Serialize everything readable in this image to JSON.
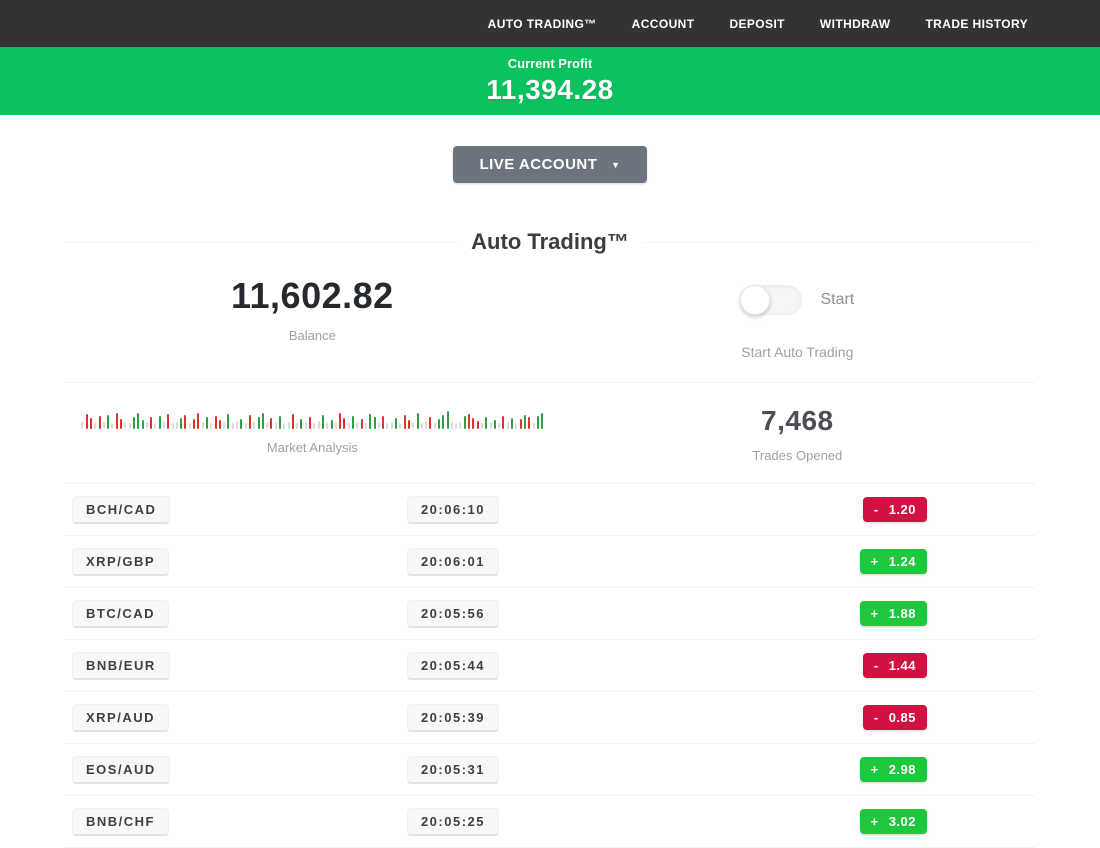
{
  "nav": {
    "items": [
      "AUTO TRADING™",
      "ACCOUNT",
      "DEPOSIT",
      "WITHDRAW",
      "TRADE HISTORY"
    ]
  },
  "banner": {
    "label": "Current Profit",
    "value": "11,394.28"
  },
  "account_button": {
    "label": "LIVE ACCOUNT",
    "caret": "▼"
  },
  "section_title": "Auto Trading™",
  "stats": {
    "balance": {
      "value": "11,602.82",
      "label": "Balance"
    },
    "auto_trading": {
      "toggle_state": "off",
      "toggle_label": "Start",
      "caption": "Start Auto Trading"
    },
    "market_analysis": {
      "label": "Market Analysis",
      "bars": [
        "n7",
        "r15",
        "r11",
        "n6",
        "r13",
        "n7",
        "g14",
        "n6",
        "r16",
        "r10",
        "n7",
        "n6",
        "g12",
        "g16",
        "g9",
        "n7",
        "r12",
        "n6",
        "g13",
        "n8",
        "r15",
        "n6",
        "n7",
        "g11",
        "r14",
        "n6",
        "r10",
        "r16",
        "n7",
        "g12",
        "n6",
        "r13",
        "r9",
        "n7",
        "g15",
        "n6",
        "n8",
        "g10",
        "n6",
        "r14",
        "n7",
        "g12",
        "g16",
        "n6",
        "r11",
        "n7",
        "g13",
        "n6",
        "n7",
        "r15",
        "n6",
        "g10",
        "n7",
        "r12",
        "n6",
        "n8",
        "g14",
        "n6",
        "g9",
        "n7",
        "r16",
        "r11",
        "n6",
        "g13",
        "n7",
        "r10",
        "n6",
        "g15",
        "g12",
        "n7",
        "r13",
        "n6",
        "n7",
        "g11",
        "n6",
        "r14",
        "r9",
        "n7",
        "g16",
        "n6",
        "n8",
        "r12",
        "n6",
        "g10",
        "g14",
        "g18",
        "n7",
        "n6",
        "n7",
        "g13",
        "r15",
        "r11",
        "r8",
        "n6",
        "g12",
        "n7",
        "g9",
        "n6",
        "r13",
        "n7",
        "g11",
        "n6",
        "r10",
        "g14",
        "r12",
        "n6",
        "g13",
        "g16"
      ]
    },
    "trades_opened": {
      "value": "7,468",
      "label": "Trades Opened"
    }
  },
  "trades": [
    {
      "pair": "BCH/CAD",
      "time": "20:06:10",
      "sign": "-",
      "amount": "1.20",
      "direction": "down"
    },
    {
      "pair": "XRP/GBP",
      "time": "20:06:01",
      "sign": "+",
      "amount": "1.24",
      "direction": "up"
    },
    {
      "pair": "BTC/CAD",
      "time": "20:05:56",
      "sign": "+",
      "amount": "1.88",
      "direction": "up"
    },
    {
      "pair": "BNB/EUR",
      "time": "20:05:44",
      "sign": "-",
      "amount": "1.44",
      "direction": "down"
    },
    {
      "pair": "XRP/AUD",
      "time": "20:05:39",
      "sign": "-",
      "amount": "0.85",
      "direction": "down"
    },
    {
      "pair": "EOS/AUD",
      "time": "20:05:31",
      "sign": "+",
      "amount": "2.98",
      "direction": "up"
    },
    {
      "pair": "BNB/CHF",
      "time": "20:05:25",
      "sign": "+",
      "amount": "3.02",
      "direction": "up"
    }
  ],
  "colors": {
    "nav_bg": "#333333",
    "banner_green": "#0bc25e",
    "button_gray": "#6c757d",
    "badge_green": "#1ec73c",
    "badge_red": "#d01141",
    "chart_red": "#e03131",
    "chart_green": "#2f9e44",
    "chart_gray": "#dcdcdc"
  }
}
